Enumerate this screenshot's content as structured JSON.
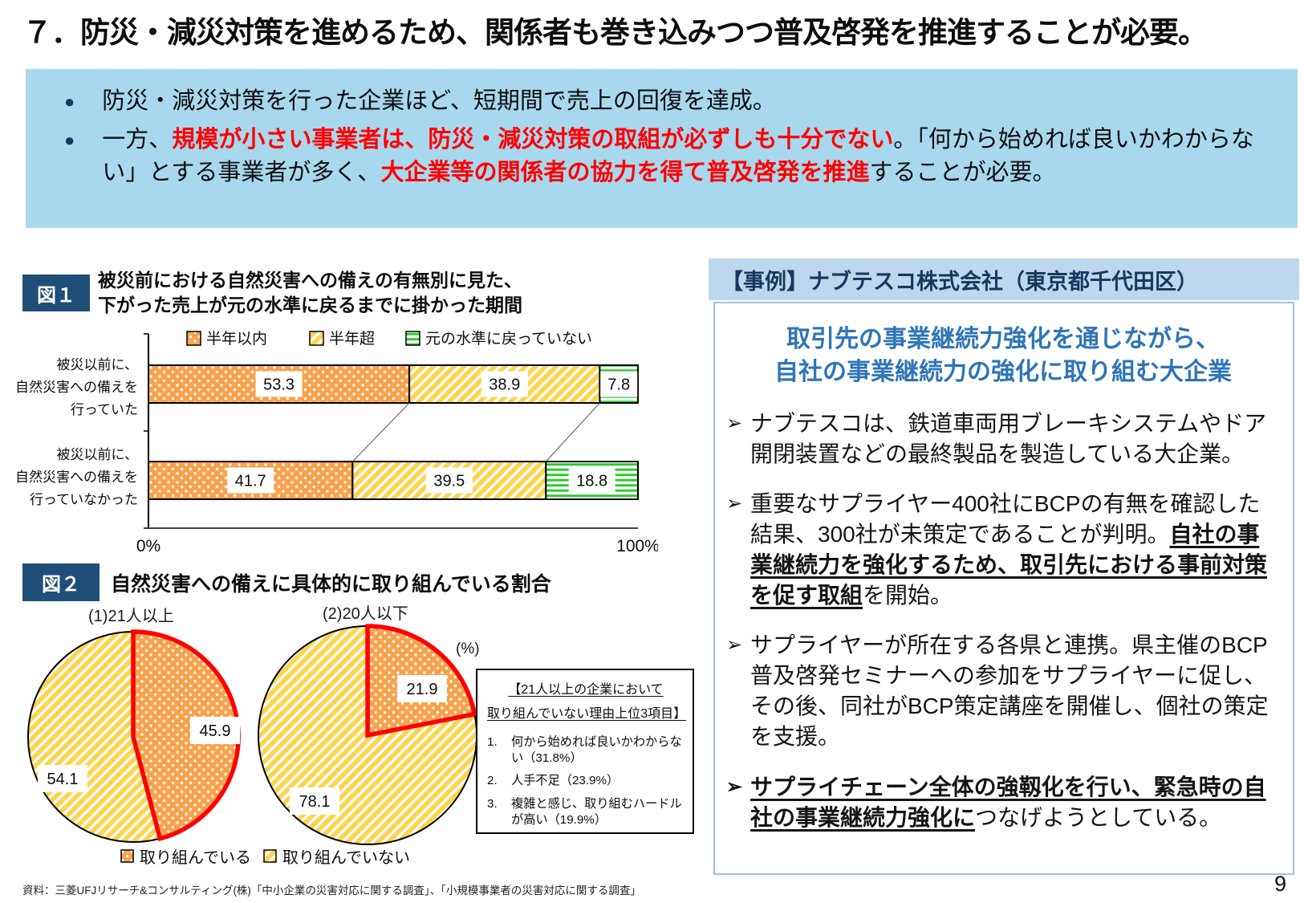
{
  "header": {
    "title": "７．防災・減災対策を進めるため、関係者も巻き込みつつ普及啓発を推進することが必要。"
  },
  "summary": {
    "bullet_marker": "●",
    "bullet1": "防災・減災対策を行った企業ほど、短期間で売上の回復を達成。",
    "b2_pre": "一方、",
    "b2_red1": "規模が小さい事業者は、防災・減災対策の取組が必ずしも十分でない",
    "b2_mid": "。「何から始めれば良いかわからない」とする事業者が多く、",
    "b2_red2": "大企業等の関係者の協力を得て普及啓発を推進",
    "b2_post": "することが必要。"
  },
  "fig1": {
    "badge": "図１",
    "title1": "被災前における自然災害への備えの有無別に見た、",
    "title2": "下がった売上が元の水準に戻るまでに掛かった期間",
    "cat1": [
      "被災以前に、",
      "自然災害への備えを",
      "行っていた"
    ],
    "cat2": [
      "被災以前に、",
      "自然災害への備えを",
      "行っていなかった"
    ],
    "axis_min": "0%",
    "axis_max": "100%"
  },
  "fig2": {
    "badge": "図２",
    "title": "自然災害への備えに具体的に取り組んでいる割合",
    "pie1_label": "(1)21人以上",
    "pie2_label": "(2)20人以下",
    "unit": "(%)",
    "legend1": "取り組んでいる",
    "legend2": "取り組んでいない"
  },
  "reasons": {
    "title1": "【21人以上の企業において",
    "title2": "取り組んでいない理由上位3項目】",
    "items": [
      {
        "num": "1.",
        "text": "何から始めれば良いかわからない（31.8%）"
      },
      {
        "num": "2.",
        "text": "人手不足（23.9%）"
      },
      {
        "num": "3.",
        "text": "複雑と感じ、取り組むハードルが高い（19.9%）"
      }
    ]
  },
  "case": {
    "header": "【事例】ナブテスコ株式会社（東京都千代田区）",
    "headline1": "取引先の事業継続力強化を通じながら、",
    "headline2": "自社の事業継続力の強化に取り組む大企業",
    "marker": "➢",
    "p1": "ナブテスコは、鉄道車両用ブレーキシステムやドア開閉装置などの最終製品を製造している大企業。",
    "p2_pre": "重要なサプライヤー400社にBCPの有無を確認した結果、300社が未策定であることが判明。",
    "p2_bold": "自社の事業継続力を強化するため、取引先における事前対策を促す取組",
    "p2_post": "を開始。",
    "p3": "サプライヤーが所在する各県と連携。県主催のBCP普及啓発セミナーへの参加をサプライヤーに促し、その後、同社がBCP策定講座を開催し、個社の策定を支援。",
    "p4_bold": "サプライチェーン全体の強靱化を行い、緊急時の自社の事業継続力強化に",
    "p4_post": "つなげようとしている。"
  },
  "footer": {
    "source": "資料：三菱UFJリサーチ&コンサルティング(株)「中小企業の災害対応に関する調査」、「小規模事業者の災害対応に関する調査」",
    "page": "9"
  },
  "colors": {
    "badge_navy": "#1F4E79",
    "summary_blue": "#A8D8EE",
    "case_header_blue": "#BDD7EE",
    "case_border_blue": "#9DC3E6",
    "headline_blue": "#2E75B6",
    "emphasis_red": "#FF0000",
    "bar_orange": "#F9A24B",
    "bar_yellow": "#FFD34D",
    "bar_green": "#2FCA2F"
  },
  "chart_data": [
    {
      "type": "bar",
      "orientation": "horizontal",
      "stacked": true,
      "title": "被災前における自然災害への備えの有無別に見た、下がった売上が元の水準に戻るまでに掛かった期間",
      "categories": [
        "被災以前に、自然災害への備えを行っていた",
        "被災以前に、自然災害への備えを行っていなかった"
      ],
      "series": [
        {
          "name": "半年以内",
          "values": [
            53.3,
            41.7
          ]
        },
        {
          "name": "半年超",
          "values": [
            38.9,
            39.5
          ]
        },
        {
          "name": "元の水準に戻っていない",
          "values": [
            7.8,
            18.8
          ]
        }
      ],
      "xlim": [
        0,
        100
      ],
      "x_ticks": [
        "0%",
        "100%"
      ],
      "legend_position": "top",
      "grid": false
    },
    {
      "type": "pie",
      "title": "(1)21人以上",
      "labels": [
        "取り組んでいる",
        "取り組んでいない"
      ],
      "values": [
        45.9,
        54.1
      ],
      "unit": "%"
    },
    {
      "type": "pie",
      "title": "(2)20人以下",
      "labels": [
        "取り組んでいる",
        "取り組んでいない"
      ],
      "values": [
        21.9,
        78.1
      ],
      "unit": "%"
    }
  ]
}
